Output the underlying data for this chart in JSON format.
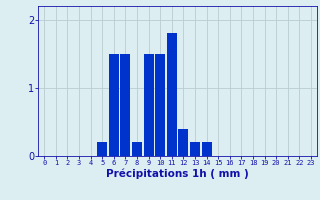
{
  "hours": [
    0,
    1,
    2,
    3,
    4,
    5,
    6,
    7,
    8,
    9,
    10,
    11,
    12,
    13,
    14,
    15,
    16,
    17,
    18,
    19,
    20,
    21,
    22,
    23
  ],
  "values": [
    0,
    0,
    0,
    0,
    0,
    0.2,
    1.5,
    1.5,
    0.2,
    1.5,
    1.5,
    1.8,
    0.4,
    0.2,
    0.2,
    0,
    0,
    0,
    0,
    0,
    0,
    0,
    0,
    0
  ],
  "bar_color": "#0033cc",
  "background_color": "#ddeef2",
  "grid_color": "#b8cdd0",
  "xlabel": "Précipitations 1h ( mm )",
  "xlabel_fontsize": 7.5,
  "ylim": [
    0,
    2.2
  ],
  "yticks": [
    0,
    1,
    2
  ],
  "tick_label_color": "#1111aa",
  "tick_fontsize": 5.0,
  "ytick_fontsize": 7.0,
  "bar_width": 0.85
}
